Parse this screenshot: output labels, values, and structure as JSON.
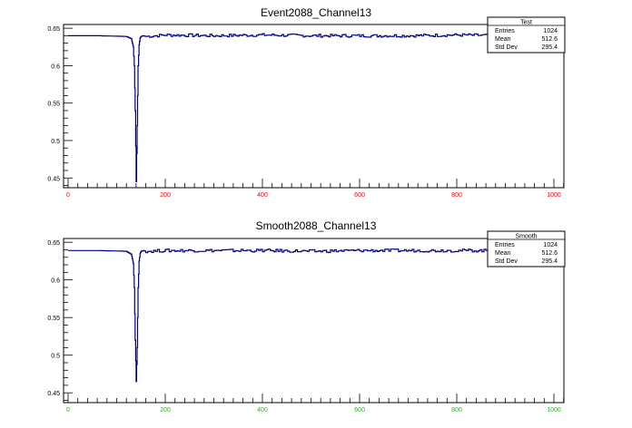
{
  "chart_data": [
    {
      "type": "line",
      "title": "Event2088_Channel13",
      "xlim": [
        0,
        1024
      ],
      "ylim": [
        0.437,
        0.655
      ],
      "x_ticks": [
        0,
        200,
        400,
        600,
        800,
        1000
      ],
      "x_tick_labels": [
        "0",
        "200",
        "400",
        "600",
        "800",
        "1000"
      ],
      "y_ticks": [
        0.45,
        0.5,
        0.55,
        0.6,
        0.65
      ],
      "y_tick_labels": [
        "0.45",
        "0.5",
        "0.55",
        "0.6",
        "0.65"
      ],
      "x_tick_color": "#ff0000",
      "line_color": "#000080",
      "baseline": 0.639,
      "x": [
        0,
        60,
        120,
        130,
        134,
        136,
        138,
        140,
        142,
        144,
        146,
        148,
        150,
        155,
        160,
        200,
        300,
        400,
        500,
        600,
        700,
        800,
        900,
        1024
      ],
      "values": [
        0.64,
        0.64,
        0.639,
        0.636,
        0.625,
        0.6,
        0.54,
        0.445,
        0.52,
        0.6,
        0.628,
        0.637,
        0.639,
        0.64,
        0.639,
        0.641,
        0.64,
        0.641,
        0.64,
        0.64,
        0.64,
        0.641,
        0.64,
        0.64
      ],
      "stats": {
        "title": "Test",
        "rows": [
          {
            "label": "Entries",
            "value": "1024"
          },
          {
            "label": "Mean",
            "value": "512.6"
          },
          {
            "label": "Std Dev",
            "value": "295.4"
          }
        ]
      }
    },
    {
      "type": "line",
      "title": "Smooth2088_Channel13",
      "xlim": [
        0,
        1024
      ],
      "ylim": [
        0.437,
        0.655
      ],
      "x_ticks": [
        0,
        200,
        400,
        600,
        800,
        1000
      ],
      "x_tick_labels": [
        "0",
        "200",
        "400",
        "600",
        "800",
        "1000"
      ],
      "y_ticks": [
        0.45,
        0.5,
        0.55,
        0.6,
        0.65
      ],
      "y_tick_labels": [
        "0.45",
        "0.5",
        "0.55",
        "0.6",
        "0.65"
      ],
      "x_tick_color": "#00cc00",
      "line_color": "#000080",
      "baseline": 0.639,
      "x": [
        0,
        60,
        120,
        130,
        134,
        136,
        138,
        140,
        142,
        144,
        146,
        148,
        150,
        155,
        160,
        200,
        300,
        400,
        500,
        600,
        700,
        800,
        900,
        1024
      ],
      "values": [
        0.639,
        0.639,
        0.638,
        0.634,
        0.622,
        0.59,
        0.52,
        0.465,
        0.51,
        0.59,
        0.625,
        0.635,
        0.638,
        0.639,
        0.638,
        0.639,
        0.639,
        0.639,
        0.638,
        0.639,
        0.639,
        0.639,
        0.639,
        0.639
      ],
      "stats": {
        "title": "Smooth",
        "rows": [
          {
            "label": "Entries",
            "value": "1024"
          },
          {
            "label": "Mean",
            "value": "512.6"
          },
          {
            "label": "Std Dev",
            "value": "295.4"
          }
        ]
      }
    }
  ]
}
